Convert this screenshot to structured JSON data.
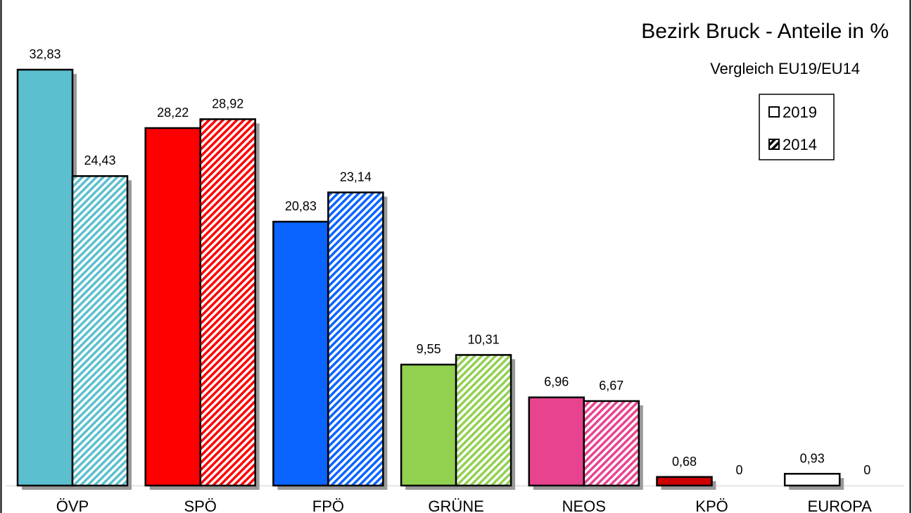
{
  "chart_data": {
    "type": "bar",
    "title": "Bezirk Bruck - Anteile in %",
    "subtitle": "Vergleich EU19/EU14",
    "xlabel": "",
    "ylabel": "",
    "ylim": [
      0,
      35
    ],
    "grid": false,
    "legend_position": "top-right",
    "categories": [
      "ÖVP",
      "SPÖ",
      "FPÖ",
      "GRÜNE",
      "NEOS",
      "KPÖ",
      "EUROPA"
    ],
    "category_colors": [
      "#5bbfcf",
      "#ff0000",
      "#0a64ff",
      "#92d050",
      "#e8438f",
      "#cc0000",
      "#ffffff"
    ],
    "series": [
      {
        "name": "2019",
        "pattern": "solid",
        "values": [
          32.83,
          28.22,
          20.83,
          9.55,
          6.96,
          0.68,
          0.93
        ],
        "labels": [
          "32,83",
          "28,22",
          "20,83",
          "9,55",
          "6,96",
          "0,68",
          "0,93"
        ]
      },
      {
        "name": "2014",
        "pattern": "diagonal-hatch",
        "values": [
          24.43,
          28.92,
          23.14,
          10.31,
          6.67,
          0,
          0
        ],
        "labels": [
          "24,43",
          "28,92",
          "23,14",
          "10,31",
          "6,67",
          "0",
          "0"
        ]
      }
    ]
  }
}
